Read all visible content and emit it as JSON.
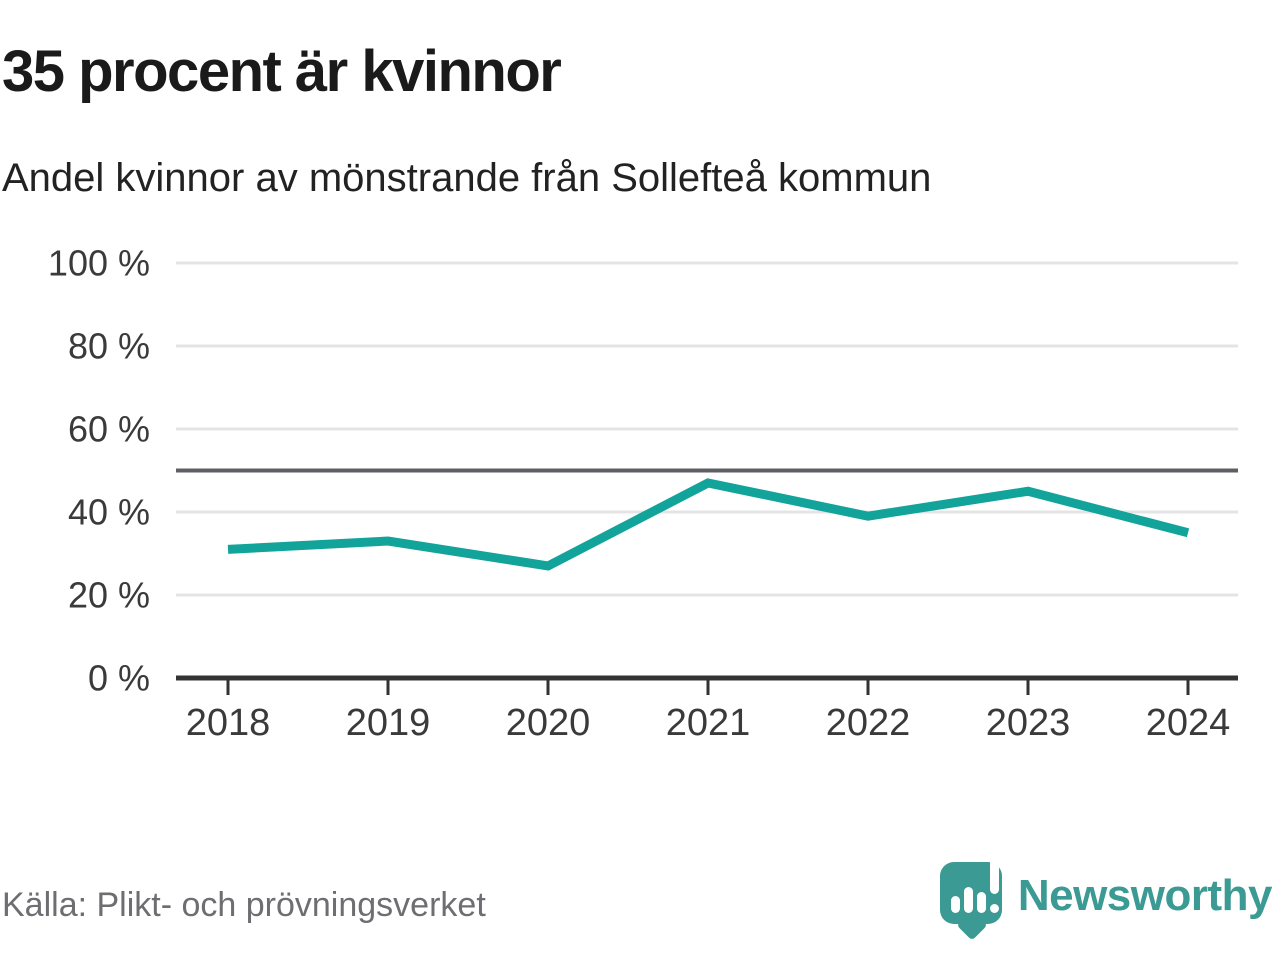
{
  "header": {
    "title": "35 procent är kvinnor",
    "subtitle": "Andel kvinnor av mönstrande från Sollefteå kommun"
  },
  "footer": {
    "source": "Källa: Plikt- och prövningsverket",
    "brand_name": "Newsworthy"
  },
  "colors": {
    "line": "#12a39a",
    "brand_teal": "#3b9b94",
    "reference_line": "#5f5f63",
    "axis": "#333333",
    "gridline": "#e4e4e4",
    "tick_text": "#3a3a3a",
    "title_text": "#1a1a1a",
    "source_text": "#6e6e72"
  },
  "chart_data": {
    "type": "line",
    "title": "35 procent är kvinnor",
    "subtitle": "Andel kvinnor av mönstrande från Sollefteå kommun",
    "x": [
      2018,
      2019,
      2020,
      2021,
      2022,
      2023,
      2024
    ],
    "series": [
      {
        "name": "Andel kvinnor av mönstrande",
        "values": [
          31,
          33,
          27,
          47,
          39,
          45,
          35
        ]
      }
    ],
    "unit": "%",
    "ylim": [
      0,
      100
    ],
    "yticks": [
      0,
      20,
      40,
      60,
      80,
      100
    ],
    "ytick_format": "{v} %",
    "xtick_labels": [
      "2018",
      "2019",
      "2020",
      "2021",
      "2022",
      "2023",
      "2024"
    ],
    "reference_line": 50,
    "grid": true,
    "legend": "none",
    "source": "Källa: Plikt- och prövningsverket"
  }
}
